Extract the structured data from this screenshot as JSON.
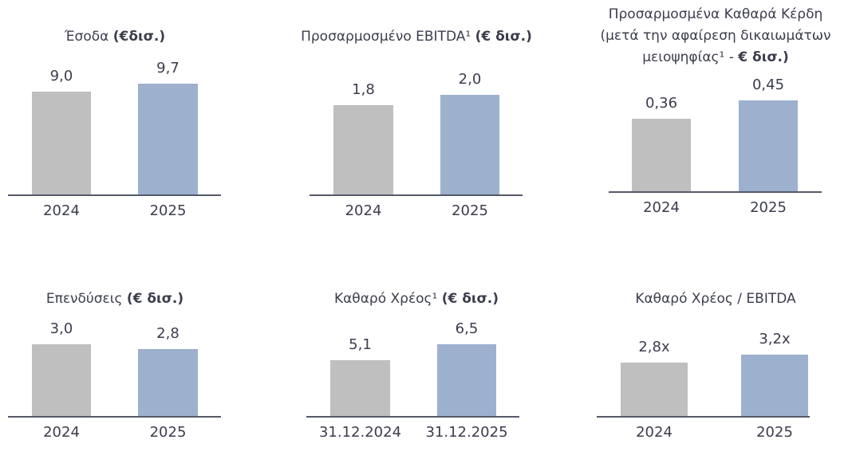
{
  "colors": {
    "prior": "#BFBFBF",
    "current": "#9DB0CE",
    "text": "#3b3d4d",
    "axis": "#555a6a"
  },
  "chart_data": [
    {
      "type": "bar",
      "title_main": "Έσοδα ",
      "title_bold": "(€δισ.)",
      "categories": [
        "2024",
        "2025"
      ],
      "values": [
        9.0,
        9.7
      ],
      "labels": [
        "9,0",
        "9,7"
      ]
    },
    {
      "type": "bar",
      "title_main": "Προσαρμοσμένο EBITDA¹ ",
      "title_bold": "(€ δισ.)",
      "categories": [
        "2024",
        "2025"
      ],
      "values": [
        1.8,
        2.0
      ],
      "labels": [
        "1,8",
        "2,0"
      ]
    },
    {
      "type": "bar",
      "title_lines": [
        "Προσαρμοσμένα Καθαρά Κέρδη",
        "(μετά την αφαίρεση δικαιωμάτων"
      ],
      "title_main": "μειοψηφίας¹ - ",
      "title_bold": "€ δισ.)",
      "categories": [
        "2024",
        "2025"
      ],
      "values": [
        0.36,
        0.45
      ],
      "labels": [
        "0,36",
        "0,45"
      ]
    },
    {
      "type": "bar",
      "title_main": "Επενδύσεις ",
      "title_bold": "(€ δισ.)",
      "categories": [
        "2024",
        "2025"
      ],
      "values": [
        3.0,
        2.8
      ],
      "labels": [
        "3,0",
        "2,8"
      ]
    },
    {
      "type": "bar",
      "title_main": "Καθαρό Χρέος¹ ",
      "title_bold": "(€ δισ.)",
      "categories": [
        "31.12.2024",
        "31.12.2025"
      ],
      "values": [
        5.1,
        6.5
      ],
      "labels": [
        "5,1",
        "6,5"
      ]
    },
    {
      "type": "bar",
      "title_main": "Καθαρό Χρέος / EBITDA",
      "title_bold": "",
      "categories": [
        "2024",
        "2025"
      ],
      "values": [
        2.8,
        3.2
      ],
      "labels": [
        "2,8x",
        "3,2x"
      ]
    }
  ]
}
